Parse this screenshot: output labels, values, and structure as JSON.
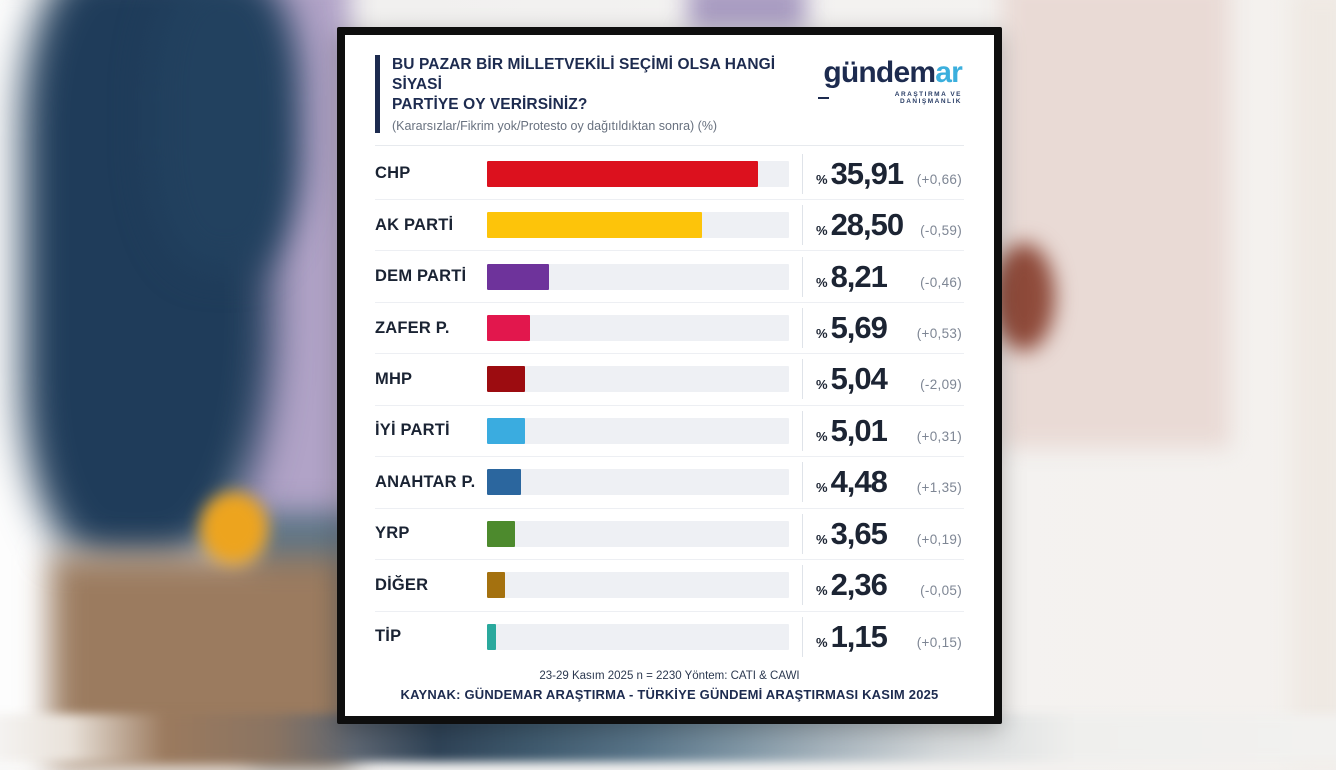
{
  "logo": {
    "main": "gündem",
    "accent": "ar",
    "tagline": "ARAŞTIRMA VE DANIŞMANLIK",
    "color_main": "#1d2b4f",
    "color_accent": "#3bafdd"
  },
  "chart_data": {
    "type": "bar",
    "orientation": "horizontal",
    "title": "BU PAZAR BİR MİLLETVEKİLİ SEÇİMİ OLSA HANGİ SİYASİ PARTİYE OY VERİRSİNİZ?",
    "title_lines": [
      "BU PAZAR BİR MİLLETVEKİLİ SEÇİMİ OLSA HANGİ SİYASİ",
      "PARTİYE OY VERİRSİNİZ?"
    ],
    "subtitle": "(Kararsızlar/Fikrim yok/Protesto oy dağıtıldıktan sonra) (%)",
    "unit": "%",
    "percent_prefix": "%",
    "xlim": [
      0,
      40
    ],
    "grid": false,
    "legend": false,
    "categories": [
      "CHP",
      "AK PARTİ",
      "DEM PARTİ",
      "ZAFER P.",
      "MHP",
      "İYİ PARTİ",
      "ANAHTAR P.",
      "YRP",
      "DİĞER",
      "TİP"
    ],
    "values": [
      35.91,
      28.5,
      8.21,
      5.69,
      5.04,
      5.01,
      4.48,
      3.65,
      2.36,
      1.15
    ],
    "value_labels": [
      "35,91",
      "28,50",
      "8,21",
      "5,69",
      "5,04",
      "5,01",
      "4,48",
      "3,65",
      "2,36",
      "1,15"
    ],
    "changes": [
      "(+0,66)",
      "(-0,59)",
      "(-0,46)",
      "(+0,53)",
      "(-2,09)",
      "(+0,31)",
      "(+1,35)",
      "(+0,19)",
      "(-0,05)",
      "(+0,15)"
    ],
    "bar_colors": [
      "#dc111e",
      "#fdc40a",
      "#6e339b",
      "#e2174d",
      "#9c0c10",
      "#3aace0",
      "#2b669e",
      "#4d8a2d",
      "#a4710f",
      "#2aa99d"
    ],
    "track_color": "#eef0f4",
    "footnote": "23-29 Kasım 2025 n = 2230 Yöntem: CATI & CAWI",
    "source": "KAYNAK: GÜNDEMAR ARAŞTIRMA - TÜRKİYE GÜNDEMİ ARAŞTIRMASI KASIM 2025"
  }
}
